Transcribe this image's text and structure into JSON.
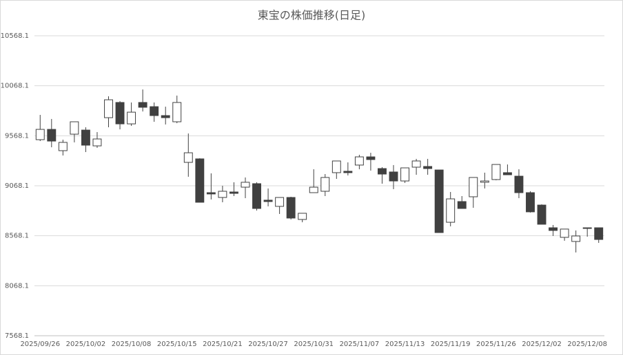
{
  "chart_data": {
    "type": "candlestick",
    "title": "東宝の株価推移(日足)",
    "categories": [
      "2025/09/26",
      null,
      null,
      null,
      "2025/10/02",
      null,
      null,
      null,
      "2025/10/08",
      null,
      null,
      null,
      "2025/10/15",
      null,
      null,
      null,
      "2025/10/21",
      null,
      null,
      null,
      "2025/10/27",
      null,
      null,
      null,
      "2025/10/31",
      null,
      null,
      null,
      "2025/11/07",
      null,
      null,
      null,
      "2025/11/13",
      null,
      null,
      null,
      "2025/11/19",
      null,
      null,
      null,
      "2025/11/26",
      null,
      null,
      null,
      "2025/12/02",
      null,
      null,
      null,
      "2025/12/08",
      null
    ],
    "open": [
      9529,
      9632,
      9419,
      9584,
      9625,
      9467,
      9749,
      9901,
      9687,
      9901,
      9859,
      9770,
      9708,
      9302,
      9337,
      8999,
      8951,
      9006,
      9054,
      9089,
      8924,
      8862,
      8951,
      8731,
      8999,
      9013,
      9199,
      9213,
      9275,
      9357,
      9240,
      9206,
      9116,
      9254,
      9261,
      9226,
      8703,
      8910,
      8958,
      9103,
      9130,
      9199,
      9164,
      8999,
      8875,
      8648,
      8552,
      8511,
      8641,
      8648
    ],
    "high": [
      9777,
      9736,
      9529,
      9708,
      9653,
      9605,
      9963,
      9914,
      9901,
      10031,
      9901,
      9859,
      9970,
      9591,
      9343,
      9192,
      9068,
      9103,
      9151,
      9103,
      9041,
      8951,
      8958,
      8793,
      9233,
      9185,
      9316,
      9302,
      9378,
      9398,
      9254,
      9275,
      9247,
      9337,
      9337,
      9226,
      9006,
      8965,
      9151,
      9199,
      9281,
      9281,
      9233,
      9013,
      8882,
      8676,
      8635,
      8621,
      8648,
      8648
    ],
    "low": [
      9515,
      9453,
      9371,
      9502,
      9405,
      9447,
      9653,
      9632,
      9667,
      9811,
      9708,
      9681,
      9694,
      9158,
      8903,
      8931,
      8903,
      8965,
      8944,
      8820,
      8862,
      8786,
      8731,
      8703,
      8999,
      8965,
      9137,
      9171,
      9233,
      9220,
      9089,
      9034,
      9096,
      9178,
      9178,
      8600,
      8662,
      8841,
      8848,
      9041,
      9123,
      9178,
      8944,
      8800,
      8683,
      8566,
      8518,
      8401,
      8559,
      8497
    ],
    "close": [
      9632,
      9515,
      9502,
      9708,
      9474,
      9536,
      9928,
      9687,
      9804,
      9853,
      9770,
      9749,
      9901,
      9398,
      8903,
      8986,
      9013,
      8992,
      9103,
      8841,
      8910,
      8951,
      8745,
      8793,
      9054,
      9151,
      9316,
      9199,
      9357,
      9330,
      9185,
      9116,
      9247,
      9316,
      9240,
      8600,
      8937,
      8841,
      9151,
      9116,
      9281,
      9178,
      8999,
      8807,
      8683,
      8621,
      8635,
      8566,
      8648,
      8531
    ],
    "up_color": "#ffffff",
    "down_color": "#404040",
    "edge_color": "#404040",
    "ylim": [
      7568.1,
      10568.1
    ],
    "yticks": [
      7568.1,
      8068.1,
      8568.1,
      9068.1,
      9568.1,
      10068.1,
      10568.1
    ],
    "grid": true
  }
}
